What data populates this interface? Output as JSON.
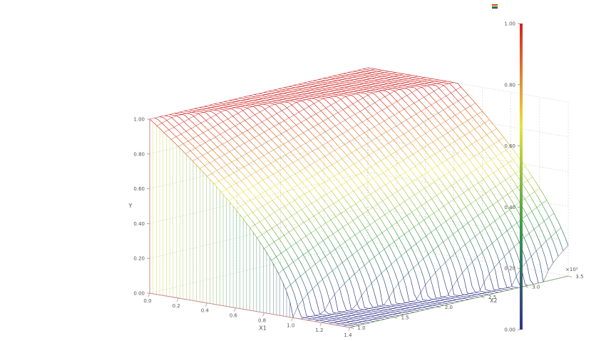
{
  "chart_data": {
    "type": "surface3d",
    "axes": {
      "x": {
        "label": "X1",
        "range": [
          0.0,
          1.4
        ],
        "ticks": [
          "0.0",
          "0.2",
          "0.4",
          "0.6",
          "0.8",
          "1.0",
          "1.2",
          "1.4"
        ]
      },
      "y": {
        "label": "X2",
        "range": [
          1.0,
          3.5
        ],
        "multiplier": "×10³",
        "ticks": [
          "1.0",
          "1.5",
          "2.0",
          "2.5",
          "3.0",
          "3.5"
        ]
      },
      "z": {
        "label": "Y",
        "range": [
          0.0,
          1.0
        ],
        "ticks": [
          "0.00",
          "0.20",
          "0.40",
          "0.60",
          "0.80",
          "1.00"
        ]
      }
    },
    "grid": true,
    "colorbar": {
      "placement": "right",
      "range": [
        0.0,
        1.0
      ],
      "ticks": [
        "0.00",
        "0.20",
        "0.40",
        "0.60",
        "0.80",
        "1.00"
      ],
      "colors": [
        "#33338c",
        "#3a9a4a",
        "#e9e33a",
        "#d42121"
      ]
    },
    "surface_samples": {
      "x": [
        0.0,
        0.2,
        0.4,
        0.6,
        0.8,
        1.0,
        1.2
      ],
      "y_top": [
        3.5,
        3.0,
        2.5,
        2.0,
        1.5
      ],
      "z_back_edge": [
        1.0,
        0.78,
        0.55,
        0.33,
        0.12,
        0.0,
        0.0
      ],
      "z_front_edge": [
        1.0,
        0.0,
        0.0,
        0.0,
        0.0,
        0.0,
        0.0
      ]
    }
  }
}
